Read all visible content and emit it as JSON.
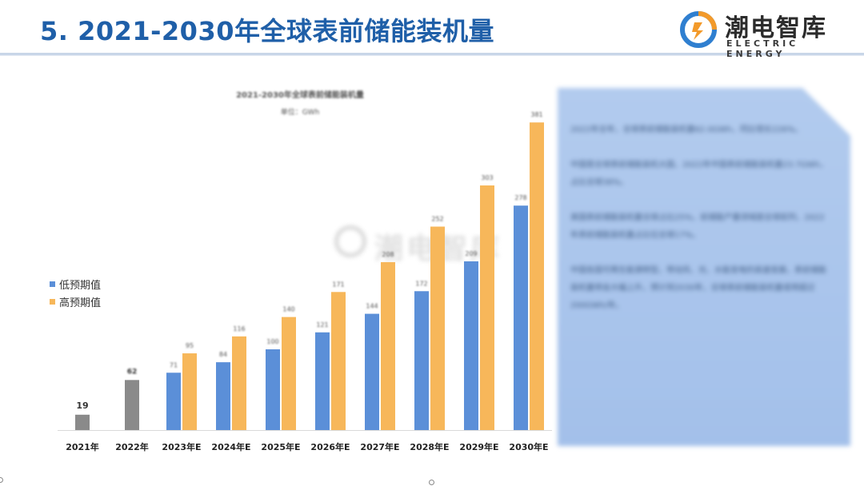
{
  "header": {
    "title": "5. 2021-2030年全球表前储能装机量",
    "logo_cn": "潮电智库",
    "logo_en": "ELECTRIC ENERGY"
  },
  "chart_data": {
    "type": "bar",
    "title": "2021-2030年全球表前储能装机量",
    "unit": "单位：GWh",
    "categories": [
      "2021年",
      "2022年",
      "2023年E",
      "2024年E",
      "2025年E",
      "2026年E",
      "2027年E",
      "2028年E",
      "2029年E",
      "2030年E"
    ],
    "actual_values": [
      19,
      62,
      null,
      null,
      null,
      null,
      null,
      null,
      null,
      null
    ],
    "series": [
      {
        "name": "低预期值",
        "values": [
          null,
          null,
          71,
          84,
          100,
          121,
          144,
          172,
          209,
          278
        ]
      },
      {
        "name": "高预期值",
        "values": [
          null,
          null,
          95,
          116,
          140,
          171,
          208,
          252,
          303,
          381
        ]
      }
    ],
    "actual_label": "19",
    "ylim": [
      0,
      400
    ],
    "grid": false,
    "legend": "left",
    "colors": {
      "actual": "#8a8a8a",
      "low": "#5b8fd8",
      "high": "#f7b75a"
    }
  },
  "watermark": {
    "text": "潮电智库"
  },
  "notes": {
    "paragraphs": [
      "2022年全年，全球表前储能装机量62.0GWh，同比增长226%。",
      "中国是全球表前储能装机大国，2022年中国表前储能装机量23.7GWh，占比全球38%。",
      "美国表前储能装机量全球占比25%，前储能产量领域居全球前列，2022年表前储能装机量占比位全球17%。",
      "中国各国可再生能源转型，带动风、光、水能发电的高速发展，表前储能装机量将会大幅上升，预计到2030年，全球表前储能装机量或将超过200GWh/年。"
    ]
  }
}
